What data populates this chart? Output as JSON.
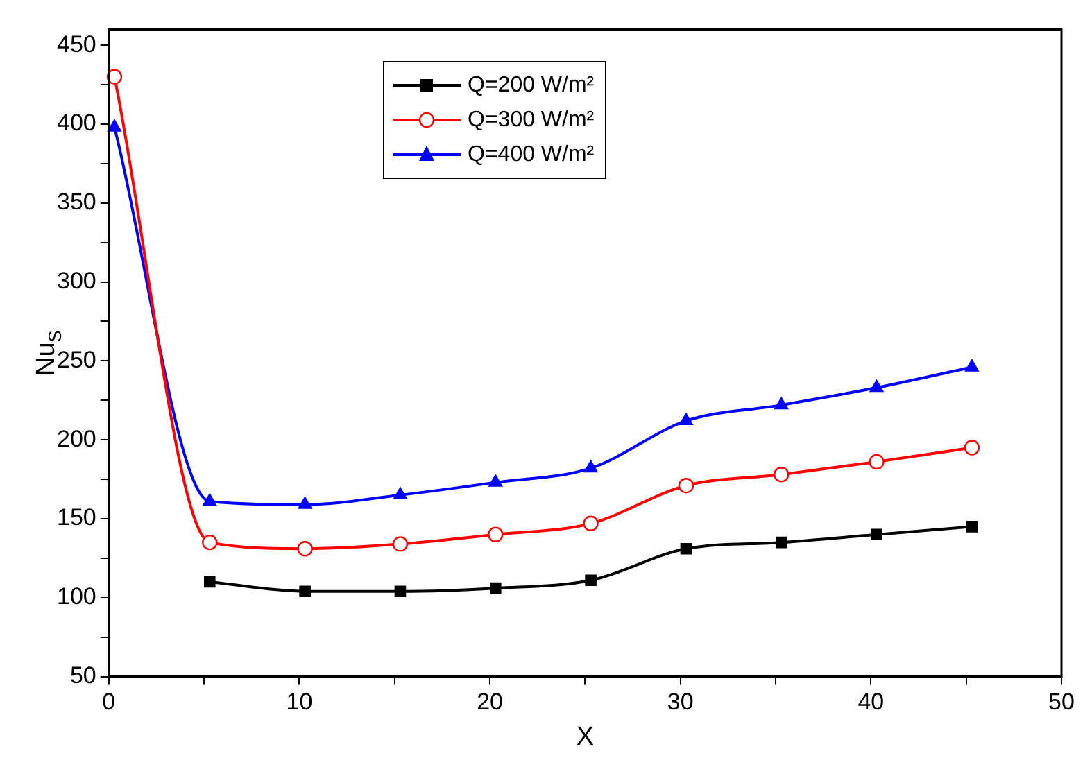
{
  "chart_data": {
    "type": "line",
    "xlabel": "X",
    "ylabel": "Nu$_{S}$",
    "x": [
      0.3,
      5.3,
      10.3,
      15.3,
      20.3,
      25.3,
      30.3,
      35.3,
      40.3,
      45.3
    ],
    "series": [
      {
        "name": "Q=200 W/m²",
        "color": "#000000",
        "marker": "square",
        "values": [
          null,
          110,
          104,
          104,
          106,
          111,
          131,
          135,
          140,
          145
        ]
      },
      {
        "name": "Q=300 W/m²",
        "color": "#ff0000",
        "marker": "circle",
        "values": [
          430,
          135,
          131,
          134,
          140,
          147,
          171,
          178,
          186,
          195
        ]
      },
      {
        "name": "Q=400 W/m²",
        "color": "#0000ff",
        "marker": "triangle",
        "values": [
          398,
          161,
          159,
          165,
          173,
          182,
          212,
          222,
          233,
          246
        ]
      }
    ],
    "xlim": [
      0,
      50
    ],
    "xticks": [
      0,
      {
        "value": 5,
        "label": null
      },
      10,
      {
        "value": 15,
        "label": null
      },
      20,
      {
        "value": 25,
        "label": null
      },
      30,
      {
        "value": 35,
        "label": null
      },
      40,
      {
        "value": 45,
        "label": null
      },
      50
    ],
    "ylim": [
      50,
      460
    ],
    "yticks": [
      50,
      {
        "value": 75,
        "label": null
      },
      100,
      {
        "value": 125,
        "label": null
      },
      150,
      {
        "value": 175,
        "label": null
      },
      200,
      {
        "value": 225,
        "label": null
      },
      250,
      {
        "value": 275,
        "label": null
      },
      300,
      {
        "value": 325,
        "label": null
      },
      350,
      {
        "value": 375,
        "label": null
      },
      400,
      {
        "value": 425,
        "label": null
      },
      450
    ],
    "grid": false,
    "legend": "top",
    "line_style": "solid"
  }
}
